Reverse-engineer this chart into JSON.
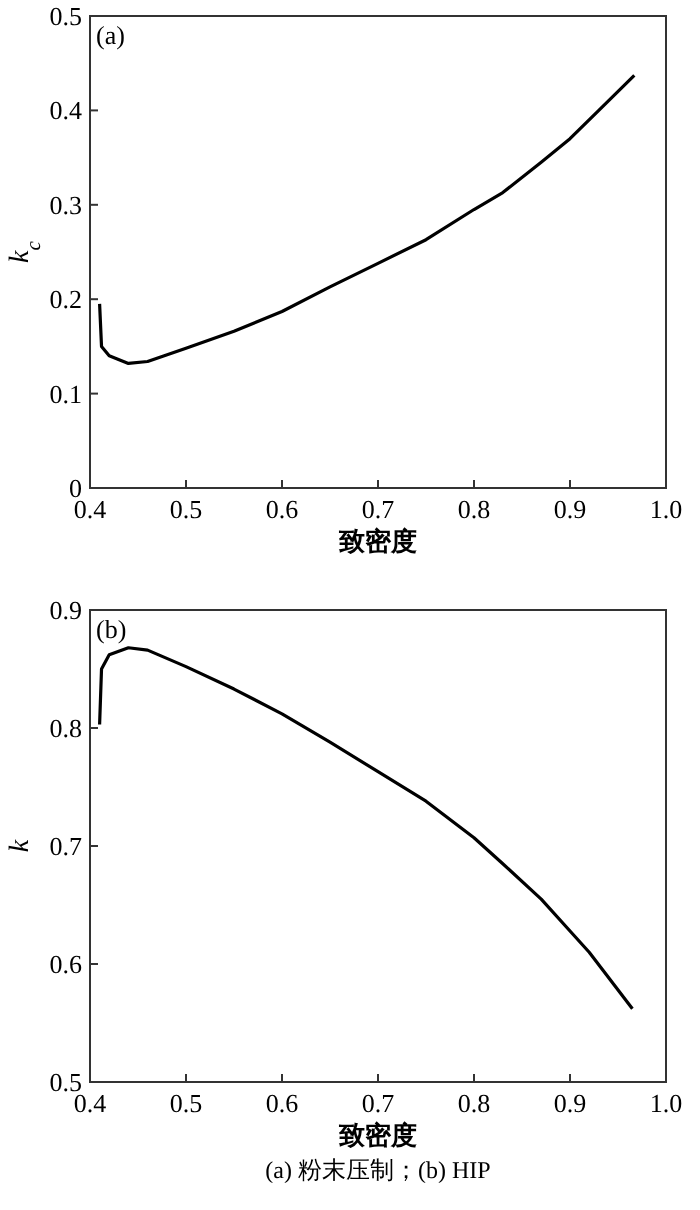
{
  "chart_data": [
    {
      "type": "line",
      "xlabel": "致密度",
      "ylabel": "k$_{c}$",
      "annotations": [
        "(a)"
      ],
      "xlim": [
        0.4,
        1.0
      ],
      "xticks": [
        0.4,
        0.5,
        0.6,
        0.7,
        0.8,
        0.9,
        {
          "value": 1.0,
          "label": "1.0"
        }
      ],
      "ylim": [
        0,
        0.5
      ],
      "yticks": [
        0,
        0.1,
        0.2,
        0.3,
        0.4,
        0.5
      ],
      "grid": false,
      "series": [
        {
          "color": "#000000",
          "x": [
            0.41,
            0.412,
            0.42,
            0.44,
            0.46,
            0.5,
            0.55,
            0.6,
            0.65,
            0.7,
            0.75,
            0.8,
            0.83,
            0.87,
            0.9,
            0.93,
            0.967
          ],
          "values": [
            0.195,
            0.15,
            0.14,
            0.132,
            0.134,
            0.148,
            0.166,
            0.187,
            0.213,
            0.238,
            0.263,
            0.295,
            0.313,
            0.345,
            0.37,
            0.4,
            0.437
          ]
        }
      ]
    },
    {
      "type": "line",
      "xlabel": "致密度",
      "ylabel": "k",
      "annotations": [
        "(b)",
        "(a)  粉末压制；(b) HIP"
      ],
      "xlim": [
        0.4,
        1.0
      ],
      "xticks": [
        0.4,
        0.5,
        0.6,
        0.7,
        0.8,
        0.9,
        {
          "value": 1.0,
          "label": "1.0"
        }
      ],
      "ylim": [
        0.5,
        0.9
      ],
      "yticks": [
        0.5,
        0.6,
        0.7,
        0.8,
        0.9
      ],
      "grid": false,
      "series": [
        {
          "color": "#000000",
          "x": [
            0.41,
            0.412,
            0.42,
            0.44,
            0.46,
            0.5,
            0.55,
            0.6,
            0.65,
            0.7,
            0.75,
            0.8,
            0.83,
            0.87,
            0.9,
            0.92,
            0.965
          ],
          "values": [
            0.803,
            0.85,
            0.862,
            0.868,
            0.866,
            0.852,
            0.833,
            0.812,
            0.788,
            0.763,
            0.738,
            0.707,
            0.685,
            0.655,
            0.628,
            0.61,
            0.562
          ]
        }
      ]
    }
  ]
}
